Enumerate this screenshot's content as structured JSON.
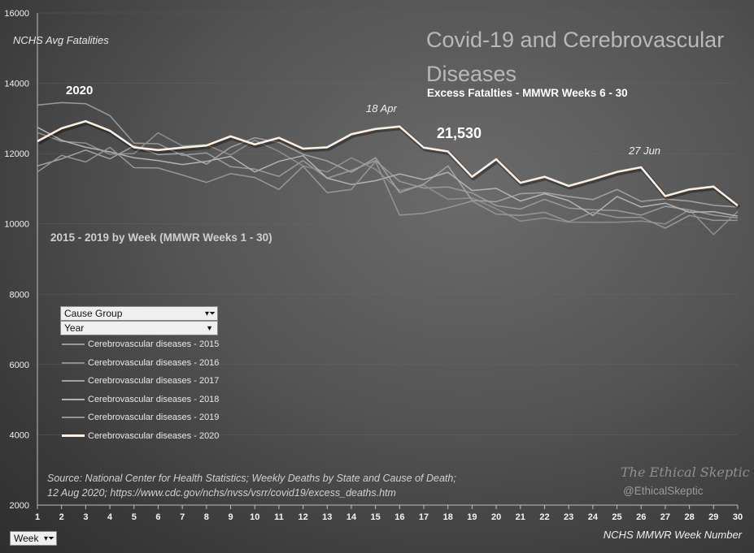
{
  "chart_data": {
    "type": "line",
    "title": "Covid-19 and Cerebrovascular Diseases",
    "subtitle": "Excess Fatalties - MMWR Weeks 6 - 30",
    "ylabel": "NCHS Avg Fatalities",
    "xlabel": "NCHS MMWR Week Number",
    "x": [
      1,
      2,
      3,
      4,
      5,
      6,
      7,
      8,
      9,
      10,
      11,
      12,
      13,
      14,
      15,
      16,
      17,
      18,
      19,
      20,
      21,
      22,
      23,
      24,
      25,
      26,
      27,
      28,
      29,
      30
    ],
    "ylim": [
      2000,
      16000
    ],
    "yticks": [
      2000,
      4000,
      6000,
      8000,
      10000,
      12000,
      14000,
      16000
    ],
    "series": [
      {
        "name": "Cerebrovascular diseases - 2015",
        "color": "#9a9a9a",
        "values": [
          13380,
          13450,
          13420,
          13080,
          12300,
          12280,
          11950,
          12020,
          11630,
          11560,
          11350,
          11800,
          11300,
          11520,
          11800,
          11210,
          11020,
          11050,
          10880,
          10520,
          10420,
          10700,
          10450,
          10400,
          10380,
          10250,
          10500,
          10400,
          10250,
          10170
        ]
      },
      {
        "name": "Cerebrovascular diseases - 2016",
        "color": "#8e8e8e",
        "values": [
          12600,
          12350,
          12300,
          11980,
          12000,
          12590,
          12220,
          12250,
          11960,
          12380,
          12060,
          11650,
          11480,
          11880,
          11550,
          10950,
          11100,
          10700,
          10740,
          10430,
          10080,
          10170,
          10050,
          10050,
          10050,
          10080,
          10000,
          10400,
          9700,
          10350
        ]
      },
      {
        "name": "Cerebrovascular diseases - 2017",
        "color": "#a2a2a2",
        "values": [
          11650,
          11850,
          12100,
          11850,
          12220,
          11970,
          12000,
          11700,
          12180,
          12450,
          12320,
          11980,
          11790,
          11470,
          11880,
          10890,
          11130,
          11650,
          10670,
          10630,
          10860,
          10890,
          10780,
          10690,
          10980,
          10640,
          10710,
          10650,
          10530,
          10480
        ]
      },
      {
        "name": "Cerebrovascular diseases - 2018",
        "color": "#b2b2b2",
        "values": [
          12750,
          12380,
          12180,
          12050,
          11880,
          11800,
          11690,
          11780,
          11920,
          11480,
          11780,
          11940,
          11300,
          11120,
          11230,
          11420,
          11260,
          11470,
          10950,
          11010,
          10650,
          10860,
          10660,
          10240,
          10780,
          10480,
          10590,
          10330,
          10350,
          10220
        ]
      },
      {
        "name": "Cerebrovascular diseases - 2019",
        "color": "#969696",
        "values": [
          11480,
          11950,
          11760,
          12180,
          11600,
          11590,
          11390,
          11180,
          11430,
          11320,
          10980,
          11640,
          10890,
          10980,
          11780,
          10250,
          10300,
          10460,
          10650,
          10280,
          10240,
          10330,
          10060,
          10330,
          10180,
          10190,
          9880,
          10240,
          10100,
          10100
        ]
      },
      {
        "name": "Cerebrovascular diseases - 2020",
        "color": "#fdeee2",
        "highlight": true,
        "values": [
          12350,
          12720,
          12920,
          12650,
          12180,
          12100,
          12170,
          12230,
          12490,
          12260,
          12450,
          12140,
          12180,
          12550,
          12700,
          12770,
          12170,
          12060,
          11340,
          11840,
          11170,
          11340,
          11080,
          11270,
          11480,
          11610,
          10790,
          10980,
          11060,
          10520
        ]
      }
    ],
    "annotations": {
      "year_label": "2020",
      "peak_label": "18 Apr",
      "excess_total": "21,530",
      "late_label": "27 Jun",
      "history_label": "2015 - 2019 by Week (MMWR Weeks 1 - 30)"
    },
    "legend_title_1": "Cause Group",
    "legend_title_2": "Year"
  },
  "source": {
    "line1": "Source:  National Center for Health Statistics;  Weekly Deaths by State and Cause of Death;",
    "line2": "12 Aug 2020; https://www.cdc.gov/nchs/nvss/vsrr/covid19/excess_deaths.htm"
  },
  "brand": {
    "name": "The Ethical Skeptic",
    "handle": "@EthicalSkeptic"
  },
  "filters": {
    "week_label": "Week"
  }
}
